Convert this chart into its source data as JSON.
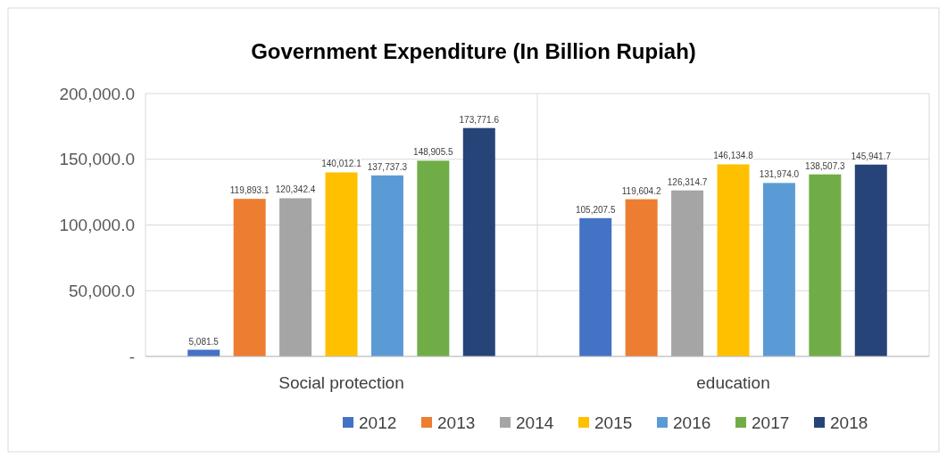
{
  "chart_data": {
    "type": "bar",
    "title": "Government Expenditure (In Billion Rupiah)",
    "categories": [
      "Social protection",
      "education"
    ],
    "series": [
      {
        "name": "2012",
        "color": "#4472c4",
        "values": [
          5081.5,
          105207.5
        ],
        "value_labels": [
          "5,081.5",
          "105,207.5"
        ]
      },
      {
        "name": "2013",
        "color": "#ed7d31",
        "values": [
          119893.1,
          119604.2
        ],
        "value_labels": [
          "119,893.1",
          "119,604.2"
        ]
      },
      {
        "name": "2014",
        "color": "#a5a5a5",
        "values": [
          120342.4,
          126314.7
        ],
        "value_labels": [
          "120,342.4",
          "126,314.7"
        ]
      },
      {
        "name": "2015",
        "color": "#ffc000",
        "values": [
          140012.1,
          146134.8
        ],
        "value_labels": [
          "140,012.1",
          "146,134.8"
        ]
      },
      {
        "name": "2016",
        "color": "#5b9bd5",
        "values": [
          137737.3,
          131974.0
        ],
        "value_labels": [
          "137,737.3",
          "131,974.0"
        ]
      },
      {
        "name": "2017",
        "color": "#70ad47",
        "values": [
          148905.5,
          138507.3
        ],
        "value_labels": [
          "148,905.5",
          "138,507.3"
        ]
      },
      {
        "name": "2018",
        "color": "#264478",
        "values": [
          173771.6,
          145941.7
        ],
        "value_labels": [
          "173,771.6",
          "145,941.7"
        ]
      }
    ],
    "ylim": [
      0,
      200000
    ],
    "yticks": [
      {
        "value": 0,
        "label": "-"
      },
      {
        "value": 50000,
        "label": "50,000.0"
      },
      {
        "value": 100000,
        "label": "100,000.0"
      },
      {
        "value": 150000,
        "label": "150,000.0"
      },
      {
        "value": 200000,
        "label": "200,000.0"
      }
    ],
    "grid": "y",
    "legend": "bottom"
  }
}
